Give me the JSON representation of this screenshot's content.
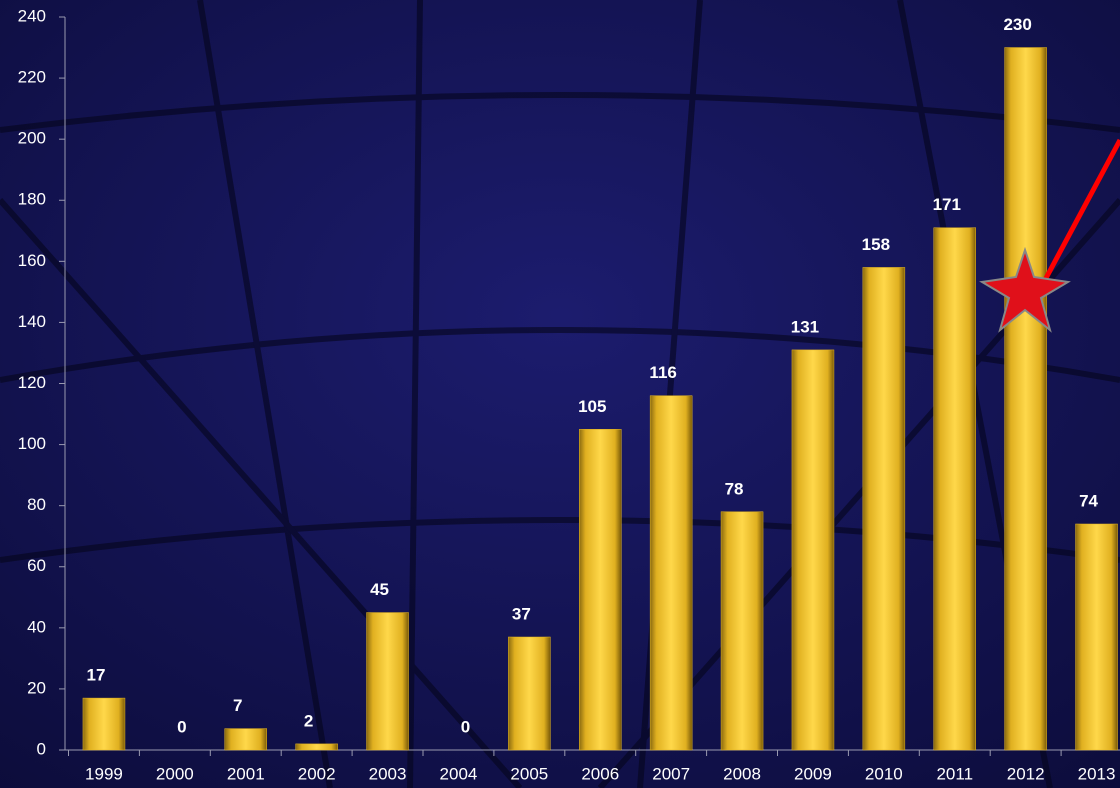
{
  "chart_data": {
    "type": "bar",
    "categories": [
      "1999",
      "2000",
      "2001",
      "2002",
      "2003",
      "2004",
      "2005",
      "2006",
      "2007",
      "2008",
      "2009",
      "2010",
      "2011",
      "2012",
      "2013"
    ],
    "values": [
      17,
      0,
      7,
      2,
      45,
      0,
      37,
      105,
      116,
      78,
      131,
      158,
      171,
      230,
      74
    ],
    "color": "#e8b820",
    "ylim": [
      0,
      240
    ],
    "yticks": [
      0,
      20,
      40,
      60,
      80,
      100,
      120,
      140,
      160,
      180,
      200,
      220,
      240
    ]
  }
}
